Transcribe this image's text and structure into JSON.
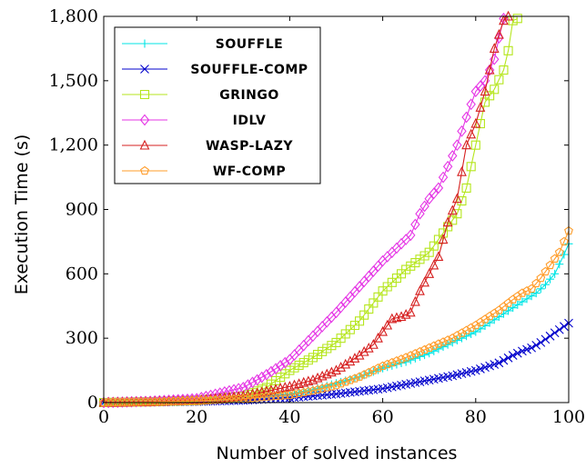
{
  "chart_data": {
    "type": "line",
    "title": "",
    "xlabel": "Number of solved instances",
    "ylabel": "Execution Time (s)",
    "xlim": [
      0,
      100
    ],
    "ylim": [
      0,
      1800
    ],
    "x_ticks": [
      0,
      20,
      40,
      60,
      80,
      100
    ],
    "x_tick_labels": [
      "0",
      "20",
      "40",
      "60",
      "80",
      "100"
    ],
    "y_ticks": [
      0,
      300,
      600,
      900,
      1200,
      1500,
      1800
    ],
    "y_tick_labels": [
      "0",
      "300",
      "600",
      "900",
      "1,200",
      "1,500",
      "1,800"
    ],
    "grid": false,
    "legend_position": "top-left",
    "series": [
      {
        "name": "SOUFFLE",
        "color": "#00e5e5",
        "marker": "plus",
        "points": [
          [
            0,
            0
          ],
          [
            10,
            3
          ],
          [
            20,
            8
          ],
          [
            30,
            18
          ],
          [
            40,
            40
          ],
          [
            45,
            60
          ],
          [
            50,
            90
          ],
          [
            55,
            120
          ],
          [
            60,
            160
          ],
          [
            65,
            190
          ],
          [
            70,
            230
          ],
          [
            75,
            280
          ],
          [
            80,
            330
          ],
          [
            85,
            400
          ],
          [
            90,
            470
          ],
          [
            93,
            510
          ],
          [
            95,
            550
          ],
          [
            97,
            600
          ],
          [
            99,
            690
          ],
          [
            100,
            740
          ]
        ]
      },
      {
        "name": "SOUFFLE-COMP",
        "color": "#0000cc",
        "marker": "cross",
        "points": [
          [
            0,
            0
          ],
          [
            10,
            2
          ],
          [
            20,
            5
          ],
          [
            30,
            10
          ],
          [
            40,
            22
          ],
          [
            50,
            40
          ],
          [
            60,
            65
          ],
          [
            65,
            85
          ],
          [
            70,
            105
          ],
          [
            75,
            125
          ],
          [
            80,
            150
          ],
          [
            85,
            185
          ],
          [
            88,
            220
          ],
          [
            90,
            240
          ],
          [
            92,
            255
          ],
          [
            94,
            280
          ],
          [
            96,
            310
          ],
          [
            98,
            340
          ],
          [
            100,
            370
          ]
        ]
      },
      {
        "name": "GRINGO",
        "color": "#b5e61d",
        "marker": "square",
        "points": [
          [
            0,
            0
          ],
          [
            10,
            4
          ],
          [
            20,
            10
          ],
          [
            30,
            30
          ],
          [
            35,
            70
          ],
          [
            40,
            150
          ],
          [
            45,
            210
          ],
          [
            50,
            280
          ],
          [
            55,
            380
          ],
          [
            60,
            520
          ],
          [
            65,
            620
          ],
          [
            70,
            700
          ],
          [
            72,
            760
          ],
          [
            74,
            820
          ],
          [
            76,
            880
          ],
          [
            78,
            1000
          ],
          [
            80,
            1200
          ],
          [
            82,
            1400
          ],
          [
            84,
            1460
          ],
          [
            86,
            1550
          ],
          [
            87,
            1640
          ],
          [
            88,
            1780
          ],
          [
            89,
            1790
          ]
        ]
      },
      {
        "name": "IDLV",
        "color": "#e536e5",
        "marker": "diamond",
        "points": [
          [
            0,
            0
          ],
          [
            10,
            6
          ],
          [
            20,
            18
          ],
          [
            30,
            70
          ],
          [
            35,
            130
          ],
          [
            40,
            200
          ],
          [
            45,
            310
          ],
          [
            50,
            420
          ],
          [
            55,
            540
          ],
          [
            60,
            660
          ],
          [
            63,
            720
          ],
          [
            66,
            780
          ],
          [
            68,
            880
          ],
          [
            70,
            950
          ],
          [
            72,
            1000
          ],
          [
            74,
            1100
          ],
          [
            76,
            1200
          ],
          [
            78,
            1330
          ],
          [
            80,
            1450
          ],
          [
            82,
            1500
          ],
          [
            84,
            1600
          ],
          [
            85,
            1700
          ],
          [
            86,
            1790
          ]
        ]
      },
      {
        "name": "WASP-LAZY",
        "color": "#d61f1f",
        "marker": "triangle",
        "points": [
          [
            0,
            0
          ],
          [
            10,
            3
          ],
          [
            20,
            10
          ],
          [
            30,
            30
          ],
          [
            40,
            75
          ],
          [
            45,
            105
          ],
          [
            50,
            150
          ],
          [
            55,
            220
          ],
          [
            58,
            270
          ],
          [
            60,
            330
          ],
          [
            62,
            390
          ],
          [
            64,
            400
          ],
          [
            66,
            420
          ],
          [
            68,
            520
          ],
          [
            70,
            600
          ],
          [
            72,
            680
          ],
          [
            74,
            840
          ],
          [
            76,
            950
          ],
          [
            78,
            1200
          ],
          [
            80,
            1300
          ],
          [
            82,
            1450
          ],
          [
            84,
            1650
          ],
          [
            86,
            1780
          ],
          [
            87,
            1800
          ]
        ]
      },
      {
        "name": "WF-COMP",
        "color": "#ff9c2a",
        "marker": "pentagon",
        "points": [
          [
            0,
            0
          ],
          [
            10,
            3
          ],
          [
            20,
            8
          ],
          [
            30,
            18
          ],
          [
            40,
            35
          ],
          [
            45,
            55
          ],
          [
            50,
            80
          ],
          [
            55,
            120
          ],
          [
            60,
            170
          ],
          [
            65,
            210
          ],
          [
            70,
            255
          ],
          [
            75,
            300
          ],
          [
            80,
            360
          ],
          [
            85,
            430
          ],
          [
            88,
            480
          ],
          [
            90,
            510
          ],
          [
            92,
            530
          ],
          [
            94,
            580
          ],
          [
            96,
            640
          ],
          [
            98,
            700
          ],
          [
            100,
            800
          ]
        ]
      }
    ]
  }
}
